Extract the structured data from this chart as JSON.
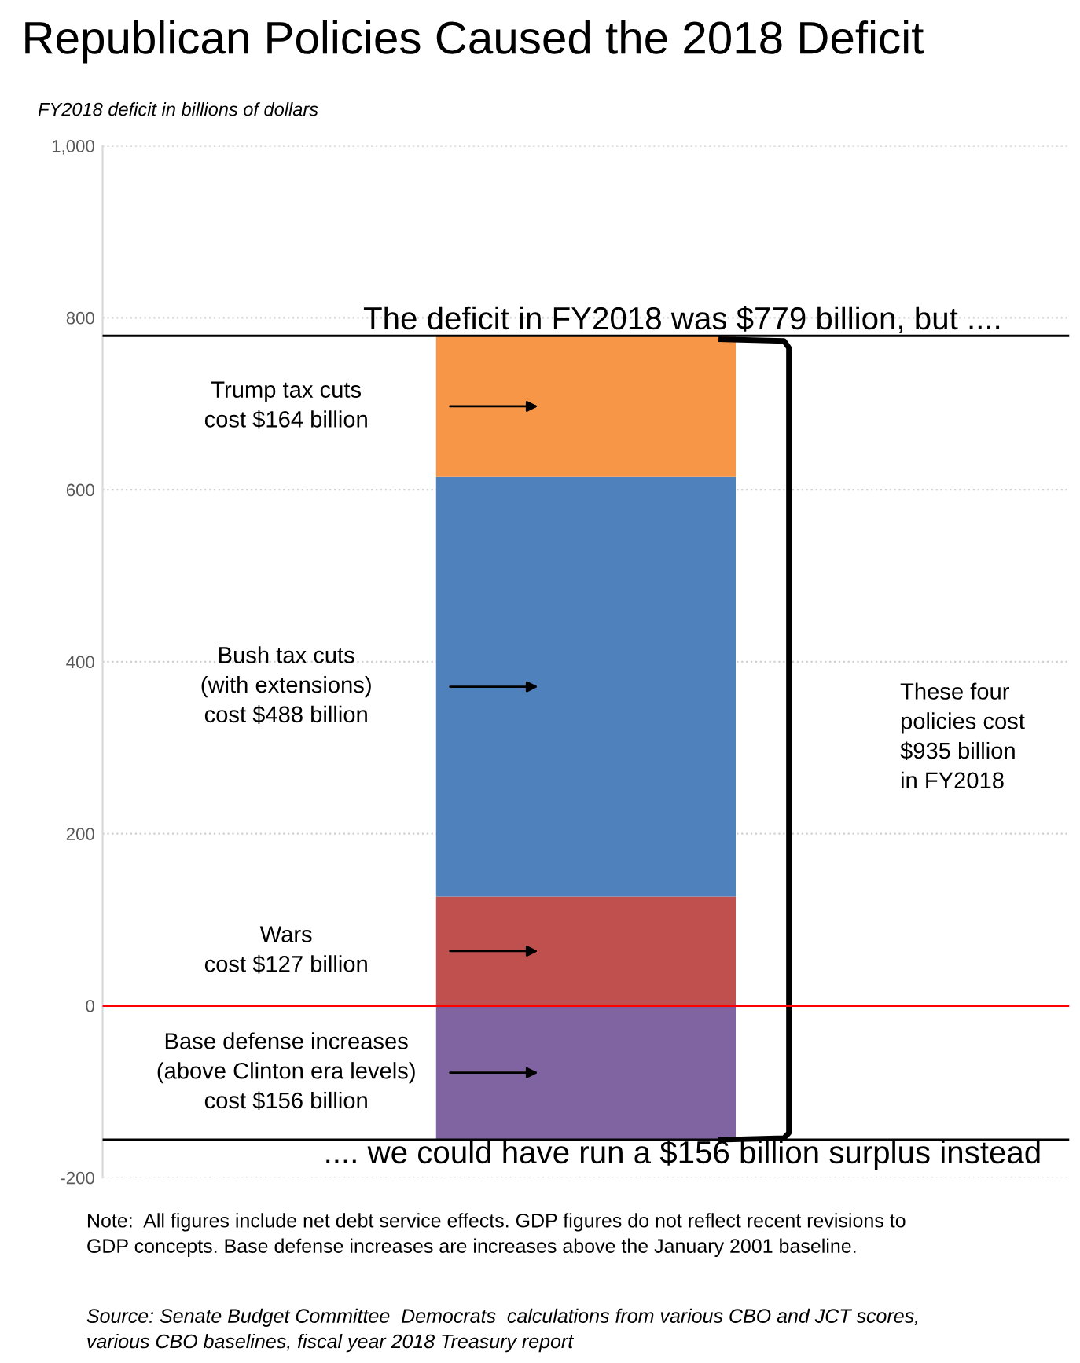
{
  "chart_data": {
    "type": "bar",
    "title": "Republican Policies Caused the 2018 Deficit",
    "subtitle": "FY2018 deficit in billions of dollars",
    "categories": [
      null
    ],
    "stacked": true,
    "series": [
      {
        "color": "#8064a2",
        "values": [
          -156
        ]
      },
      {
        "color": "#c0504d",
        "values": [
          127
        ]
      },
      {
        "color": "#4f81bd",
        "values": [
          488
        ]
      },
      {
        "color": "#f79646",
        "values": [
          164
        ]
      }
    ],
    "ylim": [
      -200,
      1000
    ],
    "yticks": [
      {
        "value": -200,
        "label": "-200"
      },
      0,
      200,
      400,
      600,
      800,
      {
        "value": 1000,
        "label": "1,000"
      }
    ],
    "grid": "y",
    "ref_lines": [
      {
        "axis": "y",
        "value": 0,
        "color": "#ff0000"
      },
      {
        "axis": "y",
        "value": 779,
        "color": "#000000",
        "label": "The deficit in FY2018 was $779 billion, but ...."
      },
      {
        "axis": "y",
        "value": -156,
        "color": "#000000",
        "label": ".... we could have run a $156 billion surplus instead"
      }
    ],
    "annotations": [
      "Trump tax cuts\ncost $164 billion",
      "Bush tax cuts\n(with extensions)\ncost $488 billion",
      "Wars\ncost $127 billion",
      "Base defense increases\n(above Clinton era levels)\ncost $156 billion",
      "These four\npolicies cost\n$935 billion\nin FY2018",
      "Note:  All figures include net debt service effects. GDP figures do not reflect recent revisions to\nGDP concepts. Base defense increases are increases above the January 2001 baseline.",
      "Source: Senate Budget Committee  Democrats  calculations from various CBO and JCT scores,\nvarious CBO baselines, fiscal year 2018 Treasury report"
    ]
  }
}
